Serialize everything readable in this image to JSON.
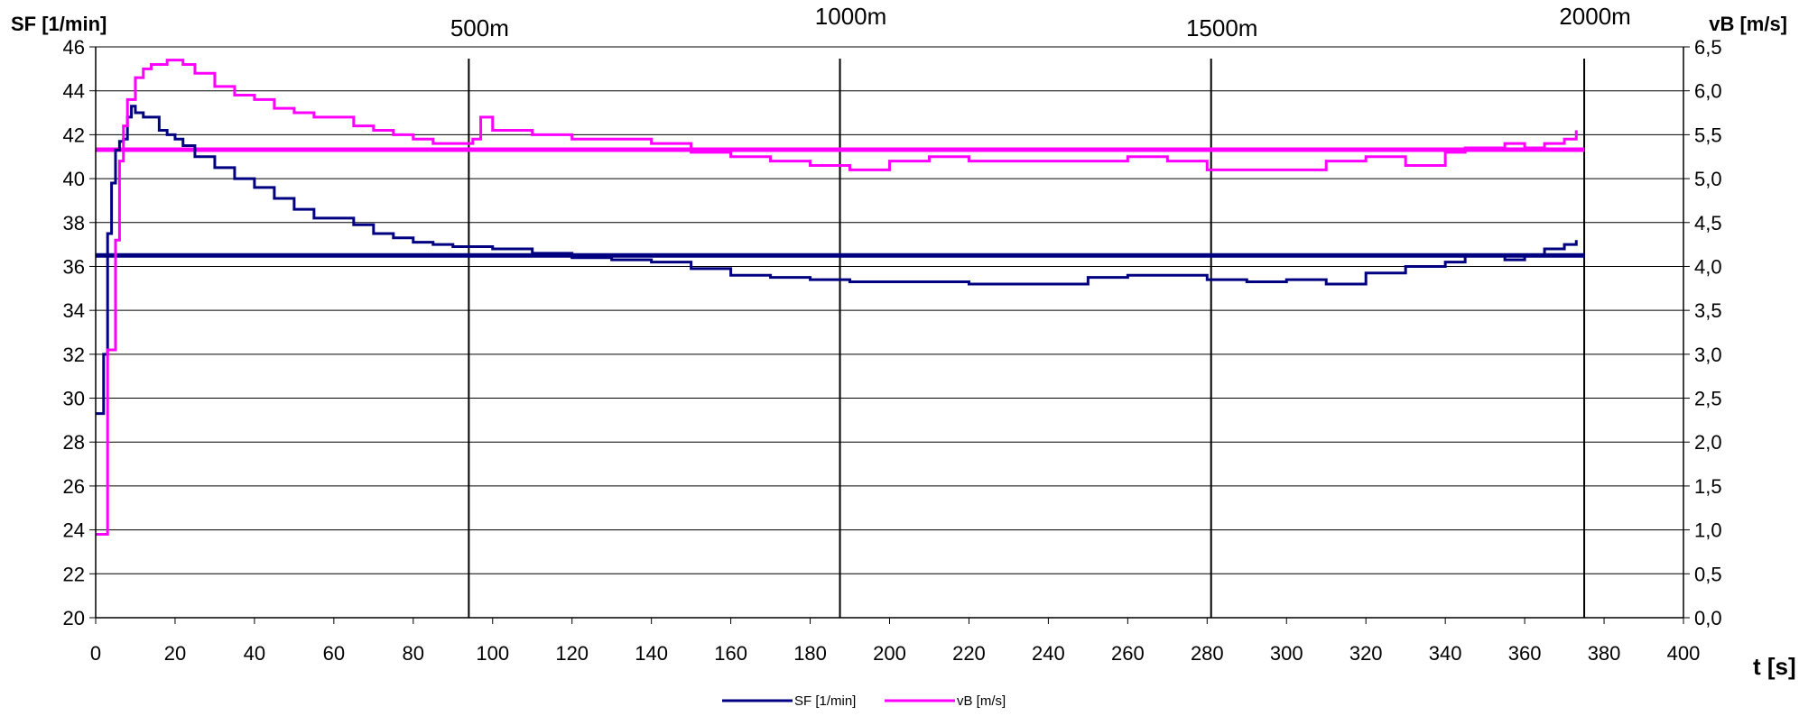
{
  "chart_data": {
    "type": "line",
    "x_label": "t [s]",
    "y_left_label": "SF [1/min]",
    "y_right_label": "vB [m/s]",
    "xlim": [
      0,
      400
    ],
    "ylim_left": [
      20,
      46
    ],
    "ylim_right": [
      0.0,
      6.5
    ],
    "x_ticks": [
      0,
      20,
      40,
      60,
      80,
      100,
      120,
      140,
      160,
      180,
      200,
      220,
      240,
      260,
      280,
      300,
      320,
      340,
      360,
      380,
      400
    ],
    "y_left_ticks": [
      20,
      22,
      24,
      26,
      28,
      30,
      32,
      34,
      36,
      38,
      40,
      42,
      44,
      46
    ],
    "y_right_ticks": [
      "0,0",
      "0,5",
      "1,0",
      "1,5",
      "2,0",
      "2,5",
      "3,0",
      "3,5",
      "4,0",
      "4,5",
      "5,0",
      "5,5",
      "6,0",
      "6,5"
    ],
    "grid": "horizontal",
    "distance_markers": [
      {
        "label": "500m",
        "t": 94
      },
      {
        "label": "1000m",
        "t": 187.5
      },
      {
        "label": "1500m",
        "t": 281
      },
      {
        "label": "2000m",
        "t": 375
      }
    ],
    "series": [
      {
        "name": "SF [1/min]",
        "axis": "left",
        "color": "#000080",
        "t": [
          0,
          2,
          3,
          4,
          5,
          6,
          7,
          8,
          9,
          10,
          12,
          14,
          16,
          18,
          20,
          22,
          25,
          30,
          35,
          40,
          45,
          50,
          55,
          60,
          65,
          70,
          75,
          80,
          85,
          90,
          95,
          100,
          110,
          120,
          130,
          140,
          150,
          160,
          170,
          180,
          190,
          200,
          210,
          220,
          230,
          240,
          250,
          260,
          270,
          280,
          290,
          300,
          310,
          320,
          330,
          340,
          345,
          350,
          355,
          360,
          365,
          370,
          373
        ],
        "values": [
          29.3,
          32.0,
          37.5,
          39.8,
          41.3,
          41.7,
          41.8,
          42.8,
          43.3,
          43.0,
          42.8,
          42.8,
          42.2,
          42.0,
          41.8,
          41.5,
          41.0,
          40.5,
          40.0,
          39.6,
          39.1,
          38.6,
          38.2,
          38.2,
          37.9,
          37.5,
          37.3,
          37.1,
          37.0,
          36.9,
          36.9,
          36.8,
          36.6,
          36.4,
          36.3,
          36.2,
          35.9,
          35.6,
          35.5,
          35.4,
          35.3,
          35.3,
          35.3,
          35.2,
          35.2,
          35.2,
          35.5,
          35.6,
          35.6,
          35.4,
          35.3,
          35.4,
          35.2,
          35.7,
          36.0,
          36.2,
          36.5,
          36.5,
          36.3,
          36.5,
          36.8,
          37.0,
          37.2
        ]
      },
      {
        "name": "vB [m/s]",
        "axis": "right",
        "color": "#ff00ff",
        "t": [
          0,
          2,
          3,
          4,
          5,
          6,
          7,
          8,
          10,
          12,
          14,
          16,
          18,
          20,
          22,
          25,
          30,
          35,
          40,
          45,
          50,
          55,
          60,
          65,
          70,
          75,
          80,
          85,
          90,
          95,
          97,
          100,
          110,
          120,
          130,
          140,
          150,
          160,
          170,
          180,
          190,
          200,
          210,
          220,
          230,
          240,
          250,
          260,
          270,
          280,
          290,
          300,
          310,
          320,
          330,
          340,
          345,
          350,
          355,
          360,
          365,
          370,
          373
        ],
        "values": [
          0.95,
          0.95,
          3.05,
          3.05,
          4.3,
          5.2,
          5.6,
          5.9,
          6.15,
          6.25,
          6.3,
          6.3,
          6.35,
          6.35,
          6.3,
          6.2,
          6.05,
          5.95,
          5.9,
          5.8,
          5.75,
          5.7,
          5.7,
          5.6,
          5.55,
          5.5,
          5.45,
          5.4,
          5.4,
          5.45,
          5.7,
          5.55,
          5.5,
          5.45,
          5.45,
          5.4,
          5.3,
          5.25,
          5.2,
          5.15,
          5.1,
          5.2,
          5.25,
          5.2,
          5.2,
          5.2,
          5.2,
          5.25,
          5.2,
          5.1,
          5.1,
          5.1,
          5.2,
          5.25,
          5.15,
          5.3,
          5.35,
          5.35,
          5.4,
          5.35,
          5.4,
          5.45,
          5.55
        ]
      }
    ],
    "reference_lines": [
      {
        "series": "SF [1/min]",
        "axis": "left",
        "value": 36.5,
        "t_range": [
          0,
          375
        ]
      },
      {
        "series": "vB [m/s]",
        "axis": "right",
        "value": 5.33,
        "t_range": [
          0,
          375
        ]
      }
    ],
    "legend": {
      "placement": "bottom-center",
      "entries": [
        {
          "label": "SF [1/min]",
          "color": "#000080"
        },
        {
          "label": "vB [m/s]",
          "color": "#ff00ff"
        }
      ]
    }
  }
}
